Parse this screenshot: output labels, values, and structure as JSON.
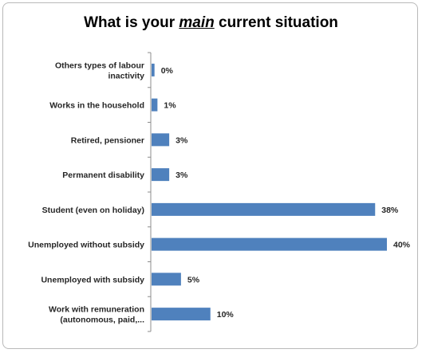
{
  "chart_data": {
    "type": "bar",
    "orientation": "horizontal",
    "title_parts": [
      "What is your ",
      "main",
      " current situation"
    ],
    "categories": [
      [
        "Others types of labour",
        "inactivity"
      ],
      [
        "Works in the household"
      ],
      [
        "Retired, pensioner"
      ],
      [
        "Permanent disability"
      ],
      [
        "Student (even on holiday)"
      ],
      [
        "Unemployed without subsidy"
      ],
      [
        "Unemployed with subsidy"
      ],
      [
        "Work with remuneration",
        "(autonomous, paid,..."
      ]
    ],
    "values": [
      0.5,
      1,
      3,
      3,
      38,
      40,
      5,
      10
    ],
    "value_labels": [
      "0%",
      "1%",
      "3%",
      "3%",
      "38%",
      "40%",
      "5%",
      "10%"
    ],
    "xlim": [
      0,
      40
    ],
    "bar_color": "#4f81bd",
    "grid": false,
    "legend": "none"
  }
}
